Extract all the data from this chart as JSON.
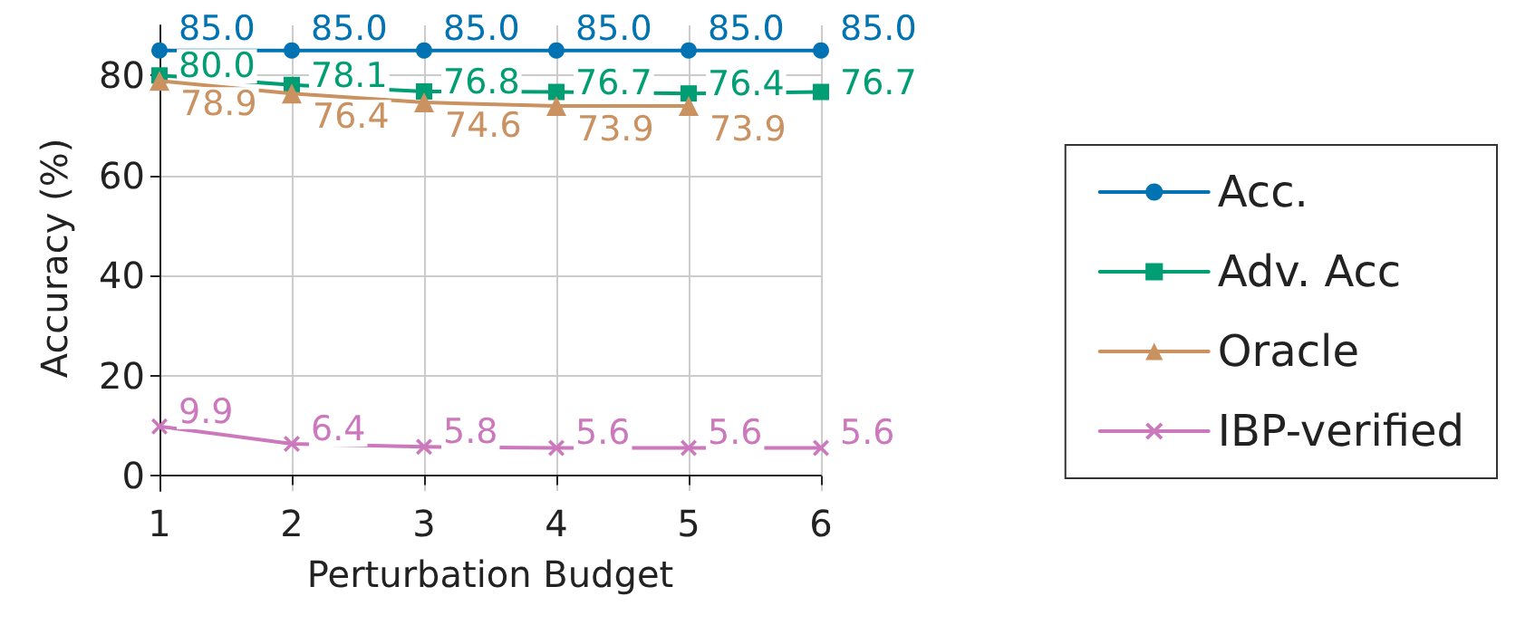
{
  "chart_data": {
    "type": "line",
    "xlabel": "Perturbation Budget",
    "ylabel": "Accuracy (%)",
    "xlim": [
      1,
      6
    ],
    "xticks": [
      1,
      2,
      3,
      4,
      5,
      6
    ],
    "ylim": [
      -3,
      90
    ],
    "yticks": [
      0,
      20,
      40,
      60,
      80
    ],
    "grid": true,
    "legend": "right",
    "line_style": "solid",
    "series": [
      {
        "name": "Acc.",
        "color": "#0173b2",
        "marker": "circle",
        "x": [
          1,
          2,
          3,
          4,
          5,
          6
        ],
        "values": [
          85.0,
          85.0,
          85.0,
          85.0,
          85.0,
          85.0
        ],
        "value_labels": [
          "85.0",
          "85.0",
          "85.0",
          "85.0",
          "85.0",
          "85.0"
        ]
      },
      {
        "name": "Adv. Acc",
        "color": "#029e73",
        "marker": "square",
        "x": [
          1,
          2,
          3,
          4,
          5,
          6
        ],
        "values": [
          80.0,
          78.1,
          76.8,
          76.7,
          76.4,
          76.7
        ],
        "value_labels": [
          "80.0",
          "78.1",
          "76.8",
          "76.7",
          "76.4",
          "76.7"
        ]
      },
      {
        "name": "Oracle",
        "color": "#ca9161",
        "marker": "triangle",
        "x": [
          1,
          2,
          3,
          4,
          5
        ],
        "values": [
          78.9,
          76.4,
          74.6,
          73.9,
          73.9
        ],
        "value_labels": [
          "78.9",
          "76.4",
          "74.6",
          "73.9",
          "73.9"
        ]
      },
      {
        "name": "IBP-verified",
        "color": "#cc78bc",
        "marker": "cross",
        "x": [
          1,
          2,
          3,
          4,
          5,
          6
        ],
        "values": [
          9.9,
          6.4,
          5.8,
          5.6,
          5.6,
          5.6
        ],
        "value_labels": [
          "9.9",
          "6.4",
          "5.8",
          "5.6",
          "5.6",
          "5.6"
        ]
      }
    ]
  }
}
